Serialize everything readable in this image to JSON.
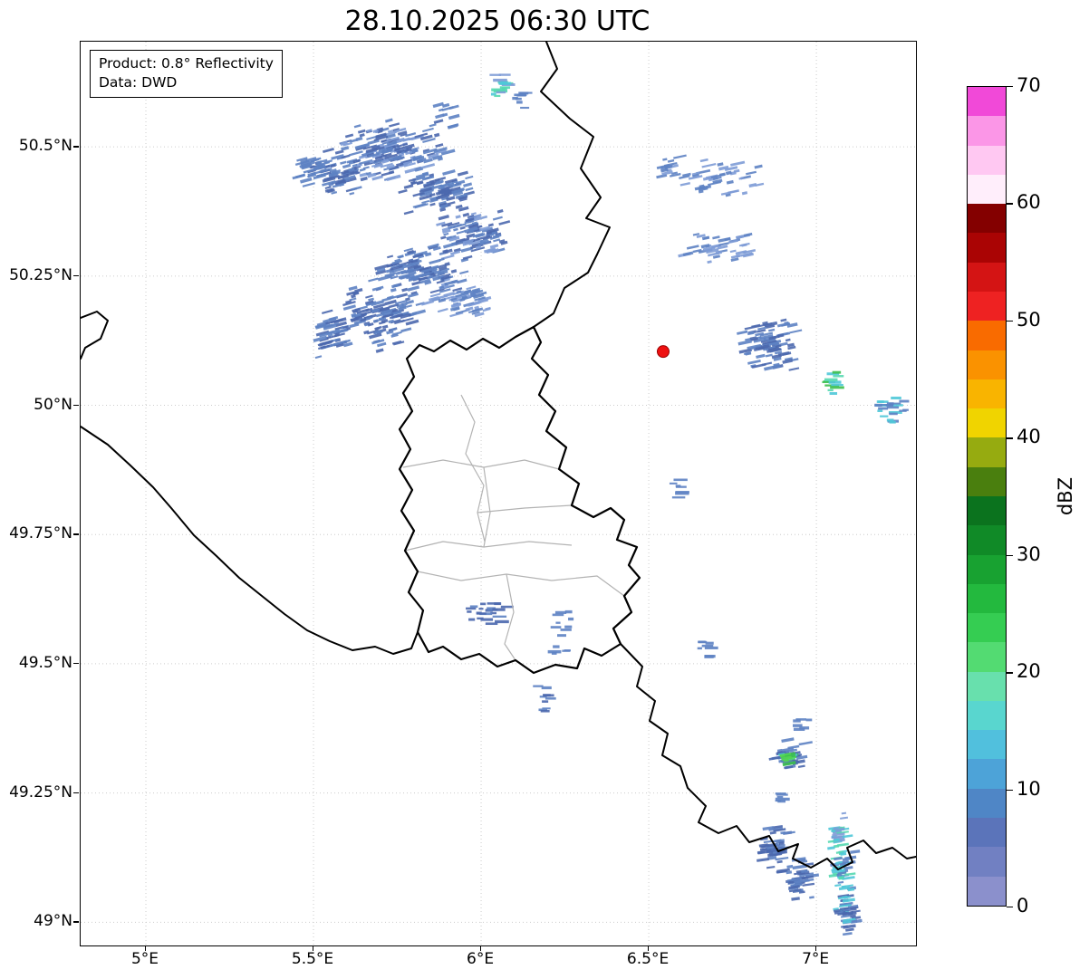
{
  "title": "28.10.2025 06:30 UTC",
  "info_box": {
    "line1": "Product: 0.8° Reflectivity",
    "line2": "Data: DWD"
  },
  "axes": {
    "lon_range": [
      4.8054,
      7.297
    ],
    "lat_range": [
      48.955,
      50.7035
    ],
    "x_ticks": [
      {
        "label": "5°E",
        "lon": 5.0
      },
      {
        "label": "5.5°E",
        "lon": 5.5
      },
      {
        "label": "6°E",
        "lon": 6.0
      },
      {
        "label": "6.5°E",
        "lon": 6.5
      },
      {
        "label": "7°E",
        "lon": 7.0
      }
    ],
    "y_ticks": [
      {
        "label": "50.5°N",
        "lat": 50.5
      },
      {
        "label": "50.25°N",
        "lat": 50.25
      },
      {
        "label": "50°N",
        "lat": 50.0
      },
      {
        "label": "49.75°N",
        "lat": 49.75
      },
      {
        "label": "49.5°N",
        "lat": 49.5
      },
      {
        "label": "49.25°N",
        "lat": 49.25
      },
      {
        "label": "49°N",
        "lat": 49.0
      }
    ],
    "grid_color": "#cccccc"
  },
  "marker": {
    "lon": 6.543,
    "lat": 50.104,
    "color": "#ee1111",
    "edge": "#990000"
  },
  "colorbar": {
    "label": "dBZ",
    "min": 0,
    "max": 70,
    "step": 2.5,
    "ticks": [
      0,
      10,
      20,
      30,
      40,
      50,
      60,
      70
    ],
    "colors_bottom_to_top": [
      "#8b90cc",
      "#7180c2",
      "#5b74ba",
      "#4f86c6",
      "#4da3d8",
      "#51c0dd",
      "#59d6cf",
      "#68e0ad",
      "#53db72",
      "#35cd52",
      "#23b93e",
      "#18a231",
      "#108a27",
      "#0b731e",
      "#4a7f0e",
      "#96ab10",
      "#f0d400",
      "#f9b400",
      "#fa9200",
      "#f96b00",
      "#ee2222",
      "#d41414",
      "#aa0404",
      "#840000",
      "#ffeefb",
      "#ffc8f2",
      "#fb96e7",
      "#f149d8"
    ]
  },
  "chart_data": {
    "type": "radar-reflectivity-map",
    "product": "0.8° Reflectivity",
    "source": "DWD",
    "timestamp": "28.10.2025 06:30 UTC",
    "units": "dBZ",
    "palette": {
      "blue": "#5d82c3",
      "blue_dark": "#4b68ae",
      "blue_light": "#7d9bd6",
      "cyan": "#4fc8d8",
      "teal": "#55d8b0",
      "green": "#3cbf4e",
      "green_bright": "#52d552"
    },
    "echo_clusters": [
      {
        "lon": 5.74,
        "lat": 50.49,
        "dlon": 0.36,
        "dlat": 0.13,
        "n": 170,
        "tilt": -15,
        "colors": [
          "blue",
          "blue_dark",
          "blue_light"
        ]
      },
      {
        "lon": 5.58,
        "lat": 50.45,
        "dlon": 0.2,
        "dlat": 0.1,
        "n": 70,
        "tilt": -15,
        "colors": [
          "blue",
          "blue_dark"
        ]
      },
      {
        "lon": 5.88,
        "lat": 50.41,
        "dlon": 0.24,
        "dlat": 0.1,
        "n": 85,
        "tilt": -15,
        "colors": [
          "blue",
          "blue_dark"
        ]
      },
      {
        "lon": 5.98,
        "lat": 50.33,
        "dlon": 0.22,
        "dlat": 0.11,
        "n": 95,
        "tilt": -15,
        "colors": [
          "blue",
          "blue_dark",
          "blue_light"
        ]
      },
      {
        "lon": 5.81,
        "lat": 50.26,
        "dlon": 0.3,
        "dlat": 0.1,
        "n": 110,
        "tilt": -15,
        "colors": [
          "blue",
          "blue_dark"
        ]
      },
      {
        "lon": 5.7,
        "lat": 50.17,
        "dlon": 0.26,
        "dlat": 0.14,
        "n": 120,
        "tilt": -15,
        "colors": [
          "blue",
          "blue_dark"
        ]
      },
      {
        "lon": 5.94,
        "lat": 50.21,
        "dlon": 0.22,
        "dlat": 0.08,
        "n": 60,
        "tilt": -15,
        "colors": [
          "blue",
          "blue_light"
        ]
      },
      {
        "lon": 5.56,
        "lat": 50.14,
        "dlon": 0.1,
        "dlat": 0.11,
        "n": 40,
        "tilt": -15,
        "colors": [
          "blue",
          "blue_dark"
        ]
      },
      {
        "lon": 5.49,
        "lat": 50.46,
        "dlon": 0.09,
        "dlat": 0.06,
        "n": 22,
        "tilt": -15,
        "colors": [
          "blue"
        ]
      },
      {
        "lon": 5.9,
        "lat": 50.56,
        "dlon": 0.06,
        "dlat": 0.05,
        "n": 10,
        "tilt": -15,
        "colors": [
          "blue"
        ]
      },
      {
        "lon": 6.06,
        "lat": 50.62,
        "dlon": 0.06,
        "dlat": 0.05,
        "n": 16,
        "tilt": 0,
        "colors": [
          "cyan",
          "teal",
          "blue_light"
        ]
      },
      {
        "lon": 6.12,
        "lat": 50.59,
        "dlon": 0.05,
        "dlat": 0.04,
        "n": 8,
        "tilt": 0,
        "colors": [
          "blue"
        ]
      },
      {
        "lon": 6.57,
        "lat": 50.46,
        "dlon": 0.1,
        "dlat": 0.05,
        "n": 16,
        "tilt": -12,
        "colors": [
          "blue",
          "blue_light"
        ]
      },
      {
        "lon": 6.74,
        "lat": 50.44,
        "dlon": 0.3,
        "dlat": 0.08,
        "n": 40,
        "tilt": -12,
        "colors": [
          "blue",
          "blue_light"
        ]
      },
      {
        "lon": 6.73,
        "lat": 50.3,
        "dlon": 0.26,
        "dlat": 0.08,
        "n": 40,
        "tilt": -12,
        "colors": [
          "blue",
          "blue_light"
        ]
      },
      {
        "lon": 6.86,
        "lat": 50.12,
        "dlon": 0.2,
        "dlat": 0.12,
        "n": 80,
        "tilt": -12,
        "colors": [
          "blue",
          "blue_dark"
        ]
      },
      {
        "lon": 7.05,
        "lat": 50.04,
        "dlon": 0.05,
        "dlat": 0.05,
        "n": 12,
        "tilt": 0,
        "colors": [
          "cyan",
          "teal",
          "green"
        ]
      },
      {
        "lon": 7.23,
        "lat": 49.99,
        "dlon": 0.12,
        "dlat": 0.06,
        "n": 22,
        "tilt": 0,
        "colors": [
          "blue",
          "cyan"
        ]
      },
      {
        "lon": 6.59,
        "lat": 49.84,
        "dlon": 0.035,
        "dlat": 0.05,
        "n": 7,
        "tilt": 0,
        "colors": [
          "blue"
        ]
      },
      {
        "lon": 6.02,
        "lat": 49.6,
        "dlon": 0.13,
        "dlat": 0.08,
        "n": 22,
        "tilt": 0,
        "colors": [
          "blue",
          "blue_dark"
        ]
      },
      {
        "lon": 6.24,
        "lat": 49.56,
        "dlon": 0.07,
        "dlat": 0.09,
        "n": 14,
        "tilt": 0,
        "colors": [
          "blue"
        ]
      },
      {
        "lon": 6.19,
        "lat": 49.43,
        "dlon": 0.05,
        "dlat": 0.06,
        "n": 10,
        "tilt": 0,
        "colors": [
          "blue",
          "blue_dark"
        ]
      },
      {
        "lon": 6.67,
        "lat": 49.53,
        "dlon": 0.045,
        "dlat": 0.05,
        "n": 8,
        "tilt": 0,
        "colors": [
          "blue"
        ]
      },
      {
        "lon": 6.95,
        "lat": 49.38,
        "dlon": 0.06,
        "dlat": 0.03,
        "n": 6,
        "tilt": 0,
        "colors": [
          "blue"
        ]
      },
      {
        "lon": 6.92,
        "lat": 49.32,
        "dlon": 0.11,
        "dlat": 0.07,
        "n": 35,
        "tilt": -10,
        "colors": [
          "blue",
          "blue_dark"
        ]
      },
      {
        "lon": 6.92,
        "lat": 49.32,
        "dlon": 0.06,
        "dlat": 0.04,
        "n": 14,
        "tilt": -10,
        "colors": [
          "green",
          "green_bright",
          "cyan"
        ]
      },
      {
        "lon": 6.88,
        "lat": 49.14,
        "dlon": 0.1,
        "dlat": 0.1,
        "n": 50,
        "tilt": -8,
        "colors": [
          "blue",
          "blue_dark"
        ]
      },
      {
        "lon": 6.95,
        "lat": 49.08,
        "dlon": 0.09,
        "dlat": 0.09,
        "n": 40,
        "tilt": -8,
        "colors": [
          "blue",
          "blue_dark"
        ]
      },
      {
        "lon": 7.07,
        "lat": 49.17,
        "dlon": 0.06,
        "dlat": 0.09,
        "n": 28,
        "tilt": -8,
        "colors": [
          "cyan",
          "blue_light",
          "teal"
        ]
      },
      {
        "lon": 7.08,
        "lat": 49.1,
        "dlon": 0.08,
        "dlat": 0.11,
        "n": 35,
        "tilt": -8,
        "colors": [
          "cyan",
          "blue",
          "teal"
        ]
      },
      {
        "lon": 7.09,
        "lat": 49.02,
        "dlon": 0.09,
        "dlat": 0.1,
        "n": 40,
        "tilt": -8,
        "colors": [
          "blue",
          "cyan",
          "blue_dark"
        ]
      },
      {
        "lon": 6.9,
        "lat": 49.24,
        "dlon": 0.05,
        "dlat": 0.03,
        "n": 6,
        "tilt": 0,
        "colors": [
          "blue"
        ]
      }
    ]
  }
}
